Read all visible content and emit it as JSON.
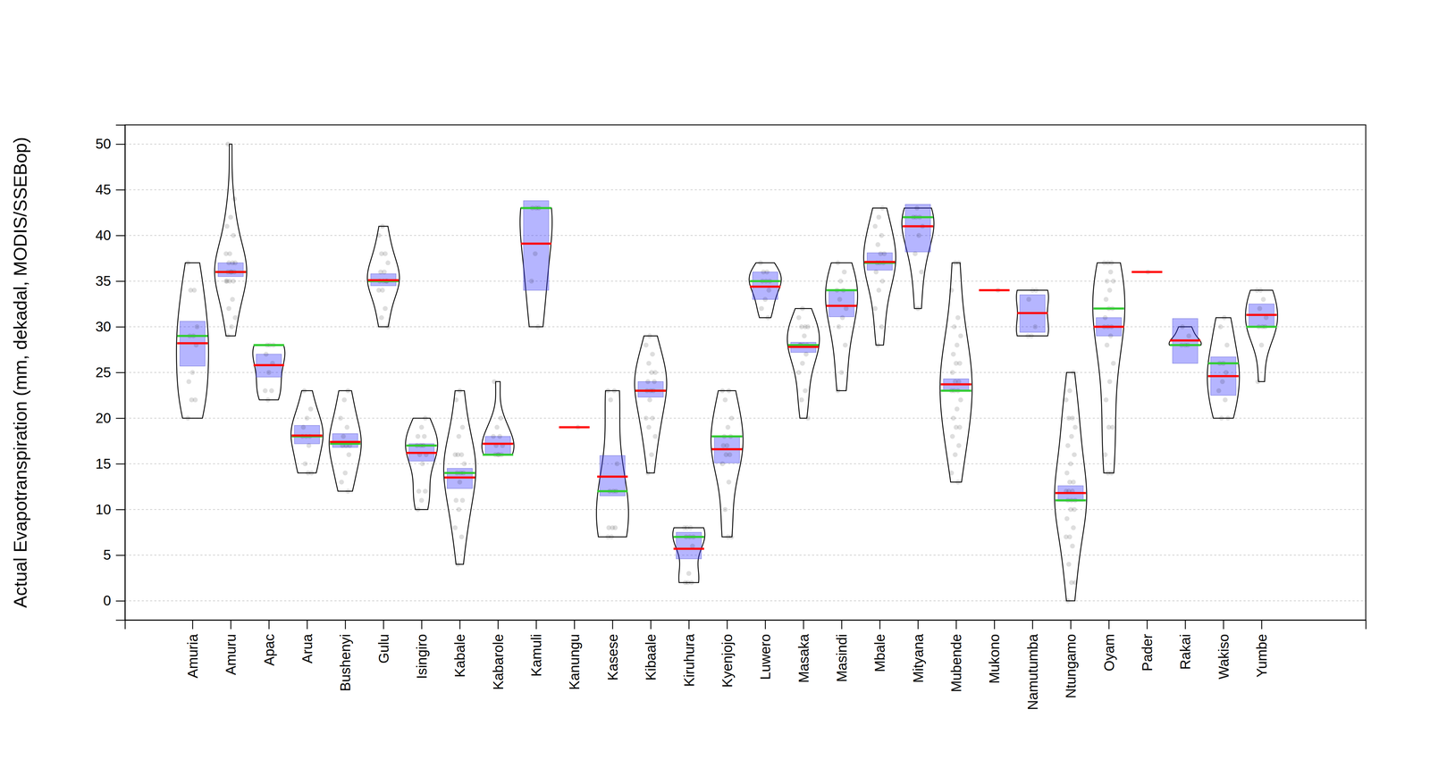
{
  "chart_data": {
    "type": "violin",
    "y_label": "Actual Evapotranspiration (mm, dekadal, MODIS/SSEBop)",
    "categories": [
      "Amuria",
      "Amuru",
      "Apac",
      "Arua",
      "Bushenyi",
      "Gulu",
      "Isingiro",
      "Kabale",
      "Kabarole",
      "Kamuli",
      "Kanungu",
      "Kasese",
      "Kibaale",
      "Kiruhura",
      "Kyenjojo",
      "Luwero",
      "Masaka",
      "Masindi",
      "Mbale",
      "Mityana",
      "Mubende",
      "Mukono",
      "Namutumba",
      "Ntungamo",
      "Oyam",
      "Pader",
      "Rakai",
      "Wakiso",
      "Yumbe"
    ],
    "ylim": [
      -2.1,
      52.1
    ],
    "yticks": [
      0,
      5,
      10,
      15,
      20,
      25,
      30,
      35,
      40,
      45,
      50
    ],
    "grid": true,
    "points": [
      [
        20,
        22,
        22,
        24,
        25,
        28,
        29,
        29,
        30,
        34,
        34,
        37
      ],
      [
        29,
        30,
        31,
        32,
        33,
        35,
        35,
        35,
        35,
        36,
        36,
        36,
        36,
        37,
        37,
        37,
        38,
        38,
        40,
        41,
        42,
        44,
        50
      ],
      [
        22,
        23,
        23,
        25,
        26,
        27,
        28,
        28,
        28
      ],
      [
        14,
        14,
        15,
        17,
        18,
        18,
        18,
        19,
        20,
        21,
        23
      ],
      [
        12,
        13,
        14,
        16,
        17,
        17,
        17,
        18,
        19,
        20,
        22,
        23
      ],
      [
        30,
        31,
        32,
        34,
        34,
        35,
        35,
        35,
        35,
        36,
        36,
        37,
        38,
        38,
        40,
        41
      ],
      [
        10,
        11,
        12,
        12,
        15,
        16,
        16,
        17,
        17,
        17,
        18,
        18,
        19,
        20
      ],
      [
        4,
        7,
        8,
        10,
        11,
        11,
        13,
        14,
        14,
        14,
        15,
        16,
        16,
        16,
        18,
        19,
        22,
        23
      ],
      [
        16,
        16,
        16,
        16,
        17,
        17,
        18,
        18,
        19,
        20,
        24
      ],
      [
        30,
        35,
        38,
        43,
        43,
        43
      ],
      [
        19
      ],
      [
        7,
        7,
        8,
        8,
        8,
        12,
        12,
        12,
        15,
        22,
        23,
        23
      ],
      [
        14,
        16,
        18,
        19,
        20,
        20,
        22,
        23,
        23,
        23,
        24,
        24,
        25,
        25,
        26,
        27,
        28,
        29
      ],
      [
        2,
        2,
        2,
        3,
        6,
        7,
        7,
        7,
        8,
        8,
        8
      ],
      [
        7,
        7,
        10,
        13,
        15,
        16,
        16,
        17,
        17,
        18,
        18,
        19,
        20,
        22,
        23,
        23
      ],
      [
        31,
        32,
        33,
        34,
        35,
        35,
        35,
        36,
        36,
        37
      ],
      [
        20,
        22,
        23,
        25,
        26,
        27,
        28,
        28,
        28,
        28,
        29,
        30,
        30,
        30,
        31,
        32
      ],
      [
        23,
        25,
        28,
        30,
        31,
        32,
        33,
        34,
        34,
        35,
        36,
        37
      ],
      [
        28,
        30,
        32,
        34,
        35,
        36,
        37,
        37,
        37,
        38,
        38,
        39,
        40,
        41,
        42,
        43
      ],
      [
        32,
        36,
        38,
        40,
        41,
        42,
        42,
        42,
        43
      ],
      [
        13,
        14,
        16,
        17,
        18,
        19,
        19,
        20,
        21,
        22,
        23,
        23,
        23,
        24,
        24,
        25,
        26,
        26,
        27,
        28,
        29,
        30,
        31,
        34,
        37,
        37
      ],
      [
        34
      ],
      [
        29,
        29,
        30,
        33,
        34,
        34
      ],
      [
        0,
        2,
        2,
        4,
        6,
        7,
        7,
        8,
        9,
        10,
        10,
        11,
        11,
        11,
        12,
        12,
        12,
        13,
        13,
        14,
        15,
        16,
        17,
        18,
        19,
        20,
        20,
        22,
        23,
        25
      ],
      [
        14,
        14,
        16,
        19,
        19,
        22,
        24,
        26,
        28,
        29,
        30,
        30,
        30,
        31,
        32,
        32,
        33,
        34,
        35,
        35,
        36,
        37,
        37,
        37
      ],
      [
        36
      ],
      [
        28,
        28,
        28,
        29,
        30
      ],
      [
        20,
        20,
        22,
        23,
        24,
        25,
        26,
        26,
        28,
        30,
        31
      ],
      [
        24,
        28,
        30,
        30,
        30,
        31,
        32,
        33,
        34,
        34
      ]
    ],
    "q1": [
      25.7,
      35.5,
      24.5,
      17.2,
      16.8,
      34.5,
      15.3,
      12.3,
      16,
      34,
      null,
      11.5,
      22.3,
      4.6,
      15.1,
      33,
      27.2,
      31.1,
      36.2,
      38.2,
      23,
      null,
      29.4,
      10.9,
      29,
      null,
      26,
      22.5,
      30
    ],
    "q3": [
      30.6,
      37,
      27,
      19.2,
      18.3,
      35.8,
      17.2,
      14.5,
      18,
      43.8,
      null,
      15.9,
      24,
      7.5,
      18,
      36,
      28.3,
      34,
      38.1,
      43.4,
      24.3,
      null,
      33.5,
      12.6,
      31,
      null,
      30.9,
      26.7,
      32.5
    ],
    "mean": [
      28.2,
      36,
      25.8,
      18.1,
      17.4,
      35.1,
      16.2,
      13.5,
      17.2,
      39.1,
      19,
      13.6,
      23,
      5.7,
      16.6,
      34.4,
      27.8,
      32.3,
      37.1,
      41,
      23.7,
      34,
      31.5,
      11.8,
      30,
      36,
      28.5,
      24.6,
      31.3
    ],
    "median": [
      29,
      36,
      28,
      18,
      17.2,
      35,
      17,
      14,
      16,
      43,
      null,
      12,
      23,
      7,
      18,
      35,
      28,
      34,
      37,
      42,
      23,
      null,
      null,
      11,
      32,
      null,
      28,
      26,
      30
    ]
  }
}
